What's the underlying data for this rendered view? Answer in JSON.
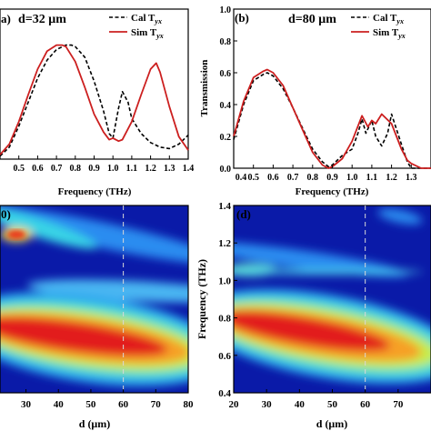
{
  "chart_data": [
    {
      "panel_label": "a)",
      "type": "line",
      "annotation": "d=32 μm",
      "xlabel": "Frequency (THz)",
      "ylabel": "",
      "xlim": [
        0.4,
        1.4
      ],
      "ylim": [
        0.0,
        1.0
      ],
      "xticks": [
        "0.5",
        "0.6",
        "0.7",
        "0.8",
        "0.9",
        "1.0",
        "1.1",
        "1.2",
        "1.3",
        "1.4"
      ],
      "legend": [
        "Cal T",
        "Sim T"
      ],
      "legend_subscript": "yx",
      "legend_placement": "top-right",
      "series": [
        {
          "name": "Cal T_yx",
          "style": "dashed",
          "color": "#000000",
          "x": [
            0.4,
            0.45,
            0.5,
            0.55,
            0.6,
            0.65,
            0.7,
            0.75,
            0.78,
            0.8,
            0.85,
            0.9,
            0.95,
            0.98,
            1.0,
            1.03,
            1.05,
            1.08,
            1.1,
            1.15,
            1.2,
            1.25,
            1.3,
            1.35,
            1.4
          ],
          "y": [
            0.02,
            0.08,
            0.22,
            0.38,
            0.54,
            0.66,
            0.73,
            0.76,
            0.76,
            0.75,
            0.68,
            0.52,
            0.32,
            0.17,
            0.14,
            0.34,
            0.45,
            0.38,
            0.27,
            0.17,
            0.11,
            0.08,
            0.07,
            0.1,
            0.16
          ]
        },
        {
          "name": "Sim T_yx",
          "style": "solid",
          "color": "#cc1f1f",
          "x": [
            0.4,
            0.45,
            0.5,
            0.55,
            0.6,
            0.65,
            0.7,
            0.73,
            0.75,
            0.8,
            0.85,
            0.9,
            0.95,
            0.98,
            1.0,
            1.03,
            1.05,
            1.1,
            1.15,
            1.2,
            1.23,
            1.25,
            1.3,
            1.35,
            1.4
          ],
          "y": [
            0.03,
            0.1,
            0.25,
            0.43,
            0.6,
            0.72,
            0.76,
            0.76,
            0.75,
            0.65,
            0.48,
            0.3,
            0.18,
            0.13,
            0.14,
            0.12,
            0.13,
            0.25,
            0.43,
            0.6,
            0.64,
            0.58,
            0.35,
            0.15,
            0.06
          ]
        }
      ]
    },
    {
      "panel_label": "(b)",
      "type": "line",
      "annotation": "d=80 μm",
      "xlabel": "Frequency (THz)",
      "ylabel": "Transmission",
      "xlim": [
        0.4,
        1.4
      ],
      "ylim": [
        0.0,
        1.0
      ],
      "xticks": [
        "0.4",
        "0.5",
        "0.6",
        "0.7",
        "0.8",
        "0.9",
        "1.0",
        "1.1",
        "1.2",
        "1.3"
      ],
      "yticks": [
        "0.0",
        "0.2",
        "0.4",
        "0.6",
        "0.8",
        "1.0"
      ],
      "legend": [
        "Cal T",
        "Sim T"
      ],
      "legend_subscript": "yx",
      "legend_placement": "top-right",
      "series": [
        {
          "name": "Cal T_yx",
          "style": "dashed",
          "color": "#000000",
          "x": [
            0.4,
            0.45,
            0.5,
            0.55,
            0.57,
            0.6,
            0.65,
            0.7,
            0.75,
            0.8,
            0.85,
            0.88,
            0.9,
            0.95,
            1.0,
            1.03,
            1.05,
            1.07,
            1.1,
            1.12,
            1.15,
            1.18,
            1.2,
            1.25,
            1.28,
            1.3,
            1.35,
            1.4
          ],
          "y": [
            0.18,
            0.4,
            0.55,
            0.59,
            0.6,
            0.58,
            0.5,
            0.38,
            0.25,
            0.12,
            0.04,
            0.01,
            0.02,
            0.08,
            0.12,
            0.22,
            0.31,
            0.22,
            0.3,
            0.2,
            0.14,
            0.22,
            0.34,
            0.15,
            0.04,
            0.0,
            0.0,
            0.0
          ]
        },
        {
          "name": "Sim T_yx",
          "style": "solid",
          "color": "#cc1f1f",
          "x": [
            0.4,
            0.45,
            0.5,
            0.55,
            0.57,
            0.6,
            0.65,
            0.7,
            0.75,
            0.8,
            0.85,
            0.88,
            0.9,
            0.95,
            1.0,
            1.05,
            1.08,
            1.1,
            1.12,
            1.15,
            1.2,
            1.25,
            1.28,
            1.3,
            1.35,
            1.4
          ],
          "y": [
            0.2,
            0.42,
            0.57,
            0.61,
            0.62,
            0.6,
            0.52,
            0.38,
            0.24,
            0.1,
            0.02,
            0.0,
            0.01,
            0.06,
            0.17,
            0.33,
            0.26,
            0.3,
            0.28,
            0.34,
            0.28,
            0.12,
            0.05,
            0.03,
            0.0,
            0.0
          ]
        }
      ]
    },
    {
      "panel_label": "0)",
      "type": "heatmap",
      "xlabel": "d (μm)",
      "ylabel": "",
      "xlim": [
        22,
        80
      ],
      "ylim": [
        0.4,
        1.4
      ],
      "xticks": [
        "30",
        "40",
        "50",
        "60",
        "70",
        "80"
      ],
      "reference_line_x": 60,
      "colormap": "jet"
    },
    {
      "panel_label": "(d)",
      "type": "heatmap",
      "xlabel": "d (μm)",
      "ylabel": "Frequency (THz)",
      "xlim": [
        20,
        80
      ],
      "ylim": [
        0.4,
        1.4
      ],
      "xticks": [
        "20",
        "30",
        "40",
        "50",
        "60",
        "70"
      ],
      "yticks": [
        "0.4",
        "0.6",
        "0.8",
        "1.0",
        "1.2",
        "1.4"
      ],
      "reference_line_x": 60,
      "colormap": "jet"
    }
  ]
}
